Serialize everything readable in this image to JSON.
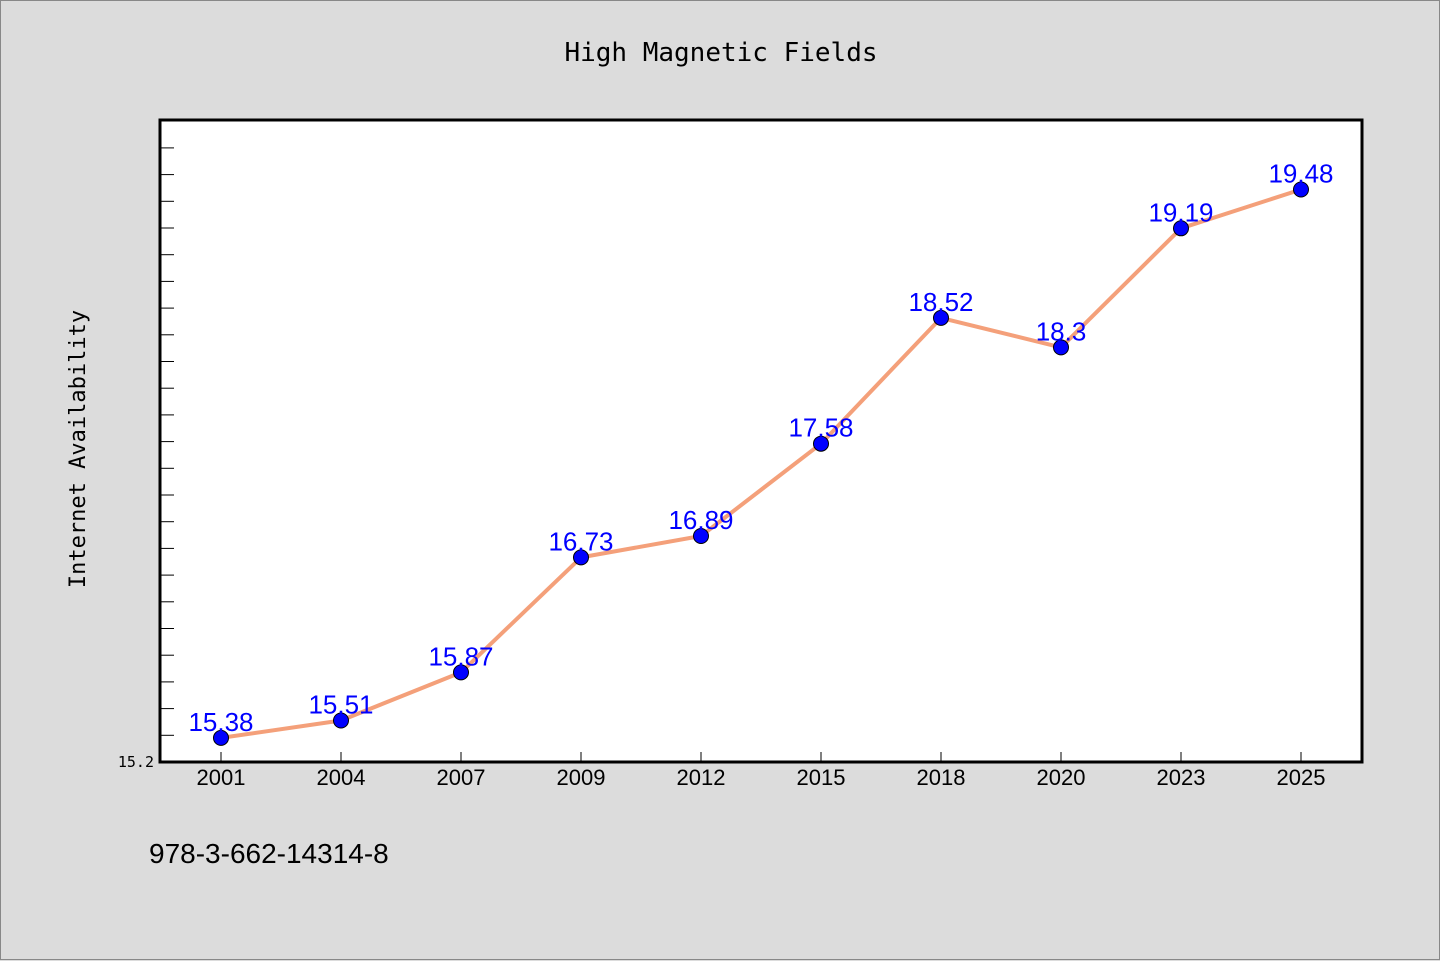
{
  "chart_data": {
    "type": "line",
    "title": "High Magnetic Fields",
    "xlabel": "",
    "ylabel": "Internet Availability",
    "categories": [
      "2001",
      "2004",
      "2007",
      "2009",
      "2012",
      "2015",
      "2018",
      "2020",
      "2023",
      "2025"
    ],
    "series": [
      {
        "values": [
          15.38,
          15.51,
          15.87,
          16.73,
          16.89,
          17.58,
          18.52,
          18.3,
          19.19,
          19.48
        ]
      }
    ],
    "data_labels": [
      "15.38",
      "15.51",
      "15.87",
      "16.73",
      "16.89",
      "17.58",
      "18.52",
      "18.3",
      "19.19",
      "19.48"
    ],
    "y_min_label": "15.2",
    "ylim": [
      15.2,
      20.0
    ],
    "grid": false,
    "line_color": "#f4a07a",
    "marker_color": "#0000ff",
    "label_color": "#0000ff"
  },
  "footer": {
    "isbn": "978-3-662-14314-8"
  }
}
